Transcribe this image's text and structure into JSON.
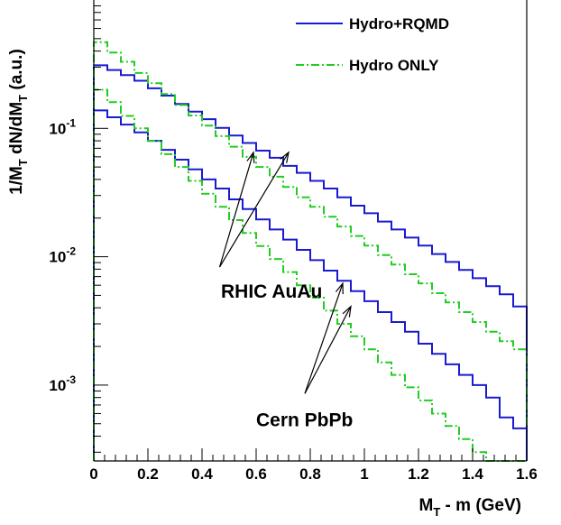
{
  "chart_data": {
    "type": "line",
    "xlabel_main": "M",
    "xlabel_sub": "T",
    "xlabel_rest": " - m (GeV)",
    "ylabel_parts": [
      "1/M",
      "T",
      " dN/dM",
      "T",
      " (a.u.)"
    ],
    "xlim": [
      0,
      1.6
    ],
    "ylim": [
      8e-05,
      1
    ],
    "yscale": "log",
    "x_ticks": [
      0,
      0.2,
      0.4,
      0.6,
      0.8,
      1,
      1.2,
      1.4,
      1.6
    ],
    "x_tick_labels": [
      "0",
      "0.2",
      "0.4",
      "0.6",
      "0.8",
      "1",
      "1.2",
      "1.4",
      "1.6"
    ],
    "y_ticks": [
      0.1,
      0.01,
      0.001
    ],
    "y_tick_base": "10",
    "y_tick_exps": [
      "-1",
      "-2",
      "-3"
    ],
    "legend_position": "top-right",
    "bin_edges": [
      0,
      0.05,
      0.1,
      0.15,
      0.2,
      0.25,
      0.3,
      0.35,
      0.4,
      0.45,
      0.5,
      0.55,
      0.6,
      0.65,
      0.7,
      0.75,
      0.8,
      0.85,
      0.9,
      0.95,
      1.0,
      1.05,
      1.1,
      1.15,
      1.2,
      1.25,
      1.3,
      1.35,
      1.4,
      1.45,
      1.5,
      1.55,
      1.6
    ],
    "series": [
      {
        "name": "Hydro+RQMD",
        "color": "#1a1ad0",
        "style": "solid",
        "dataset": "RHIC AuAu",
        "values": [
          0.31,
          0.285,
          0.26,
          0.235,
          0.205,
          0.18,
          0.155,
          0.135,
          0.118,
          0.101,
          0.088,
          0.077,
          0.067,
          0.059,
          0.051,
          0.045,
          0.039,
          0.034,
          0.029,
          0.025,
          0.0218,
          0.0188,
          0.0163,
          0.0141,
          0.0122,
          0.0105,
          0.0091,
          0.0079,
          0.0068,
          0.0059,
          0.0051,
          0.0041
        ]
      },
      {
        "name": "Hydro ONLY",
        "color": "#22cc22",
        "style": "dashdot",
        "dataset": "RHIC AuAu",
        "values": [
          0.47,
          0.39,
          0.33,
          0.27,
          0.225,
          0.185,
          0.152,
          0.126,
          0.105,
          0.087,
          0.072,
          0.06,
          0.05,
          0.042,
          0.035,
          0.029,
          0.0245,
          0.0205,
          0.0172,
          0.0145,
          0.0122,
          0.0103,
          0.0087,
          0.0073,
          0.0062,
          0.0052,
          0.0044,
          0.0037,
          0.0031,
          0.0026,
          0.0022,
          0.0019
        ]
      },
      {
        "name": "Hydro+RQMD",
        "color": "#1a1ad0",
        "style": "solid",
        "dataset": "Cern PbPb",
        "values": [
          0.138,
          0.122,
          0.107,
          0.093,
          0.08,
          0.068,
          0.057,
          0.048,
          0.04,
          0.034,
          0.028,
          0.0235,
          0.0195,
          0.0163,
          0.0136,
          0.0113,
          0.0094,
          0.0078,
          0.0065,
          0.0054,
          0.0045,
          0.0037,
          0.0031,
          0.0026,
          0.0021,
          0.00175,
          0.00145,
          0.0012,
          0.001,
          0.0008,
          0.00056,
          0.00046
        ]
      },
      {
        "name": "Hydro ONLY",
        "color": "#22cc22",
        "style": "dashdot",
        "dataset": "Cern PbPb",
        "values": [
          0.2,
          0.16,
          0.125,
          0.1,
          0.08,
          0.063,
          0.05,
          0.039,
          0.031,
          0.0245,
          0.0193,
          0.0153,
          0.0121,
          0.0096,
          0.0076,
          0.006,
          0.0048,
          0.0038,
          0.003,
          0.0024,
          0.0019,
          0.0015,
          0.0012,
          0.00096,
          0.00076,
          0.0006,
          0.00048,
          0.00038,
          0.0003,
          0.00024,
          0.00019,
          0.00015
        ]
      }
    ],
    "annotations": [
      {
        "text": "RHIC AuAu",
        "x": 0.47,
        "y": 0.0048,
        "arrow_tail": [
          0.465,
          0.0083
        ],
        "arrow_heads": [
          [
            0.59,
            0.065
          ],
          [
            0.72,
            0.065
          ]
        ]
      },
      {
        "text": "Cern PbPb",
        "x": 0.6,
        "y": 0.00048,
        "arrow_tail": [
          0.78,
          0.00086
        ],
        "arrow_heads": [
          [
            0.92,
            0.0062
          ],
          [
            0.95,
            0.0041
          ]
        ]
      }
    ]
  }
}
